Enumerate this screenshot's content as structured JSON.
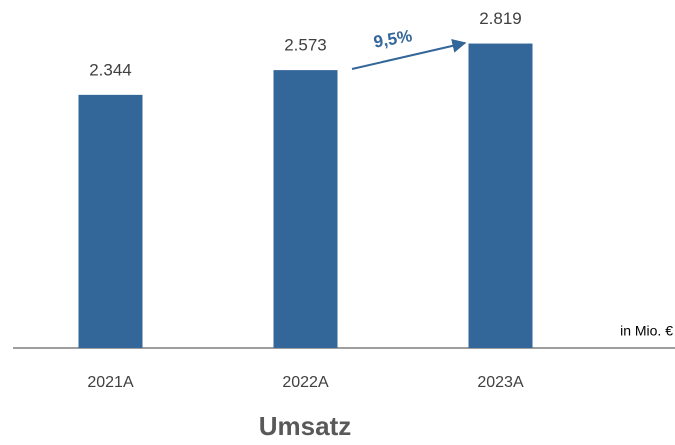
{
  "chart_data": {
    "type": "bar",
    "title": "Umsatz",
    "unit_label": "in Mio. €",
    "annotation": "9,5%",
    "categories": [
      "2021A",
      "2022A",
      "2023A"
    ],
    "values": [
      2344,
      2573,
      2819
    ],
    "value_labels": [
      "2.344",
      "2.573",
      "2.819"
    ],
    "color": "#336699",
    "ylim": [
      0,
      3000
    ]
  }
}
